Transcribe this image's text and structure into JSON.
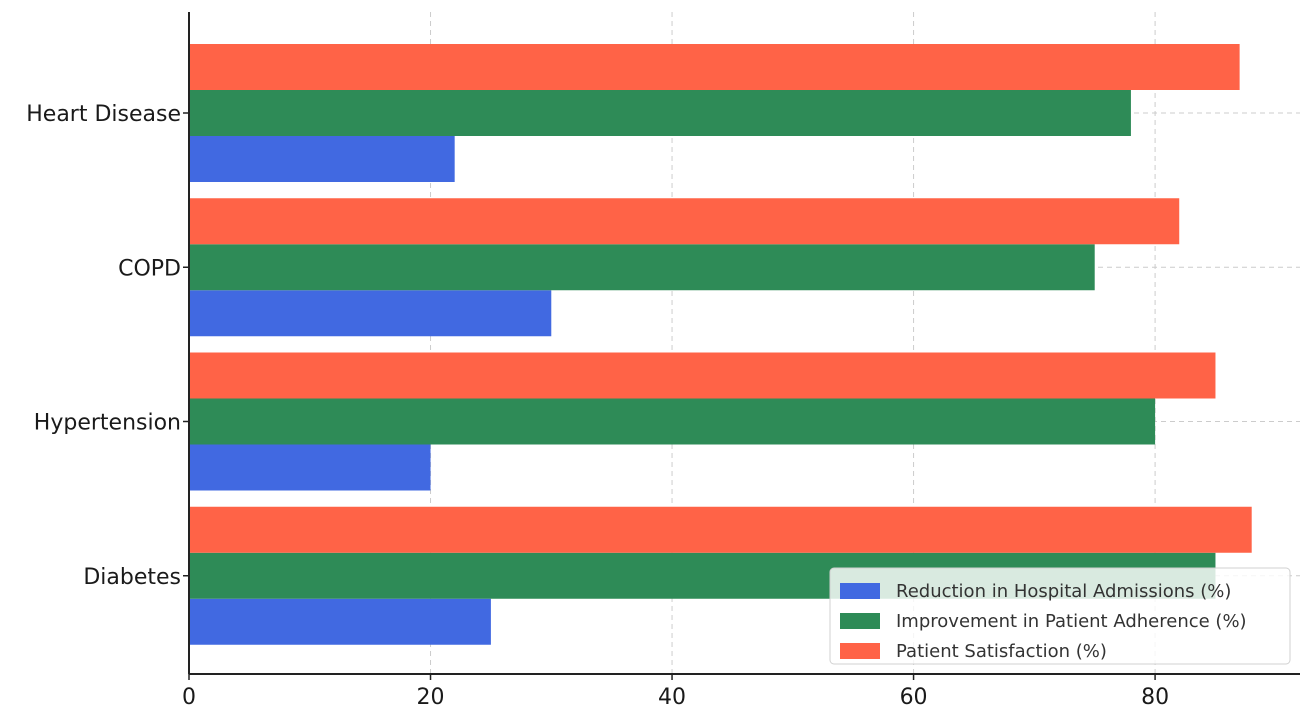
{
  "chart_data": {
    "type": "bar",
    "orientation": "horizontal",
    "categories": [
      "Heart Disease",
      "COPD",
      "Hypertension",
      "Diabetes"
    ],
    "series": [
      {
        "name": "Reduction in Hospital Admissions (%)",
        "color": "#4169E1",
        "values": [
          22,
          30,
          20,
          25
        ]
      },
      {
        "name": "Improvement in Patient Adherence (%)",
        "color": "#2E8B57",
        "values": [
          78,
          75,
          80,
          85
        ]
      },
      {
        "name": "Patient Satisfaction (%)",
        "color": "#FF6347",
        "values": [
          87,
          82,
          85,
          88
        ]
      }
    ],
    "xlim": [
      0,
      92
    ],
    "xticks": [
      0,
      20,
      40,
      60,
      80
    ],
    "title": "",
    "xlabel": "",
    "ylabel": "",
    "grid": true,
    "legend_position": "lower-right"
  }
}
